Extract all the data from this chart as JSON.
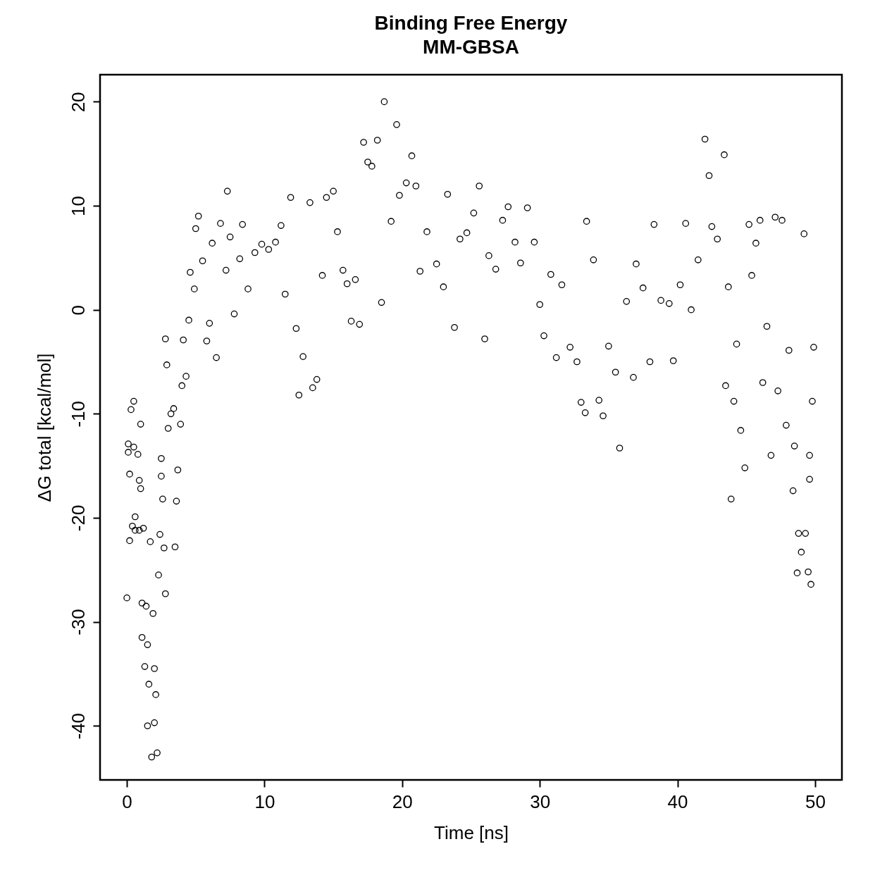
{
  "chart_data": {
    "type": "scatter",
    "title": "Binding Free Energy",
    "subtitle": "MM-GBSA",
    "xlabel": "Time [ns]",
    "ylabel": "ΔG total [kcal/mol]",
    "marker": "circle",
    "xlim": [
      -1.95,
      51.95
    ],
    "ylim": [
      -45.2,
      22.6
    ],
    "xticks": [
      0,
      10,
      20,
      30,
      40,
      50
    ],
    "yticks": [
      -40,
      -30,
      -20,
      -10,
      0,
      10,
      20
    ],
    "series": [
      {
        "color": "#000000",
        "x": [
          0.0,
          0.1,
          0.1,
          0.2,
          0.2,
          0.3,
          0.4,
          0.5,
          0.5,
          0.6,
          0.6,
          0.8,
          0.9,
          0.9,
          1.0,
          1.0,
          1.1,
          1.1,
          1.2,
          1.3,
          1.4,
          1.5,
          1.5,
          1.6,
          1.7,
          1.8,
          1.9,
          2.0,
          2.0,
          2.1,
          2.2,
          2.3,
          2.4,
          2.5,
          2.5,
          2.6,
          2.7,
          2.8,
          2.8,
          2.9,
          3.0,
          3.2,
          3.4,
          3.5,
          3.6,
          3.7,
          3.9,
          4.0,
          4.1,
          4.3,
          4.5,
          4.6,
          4.9,
          5.0,
          5.2,
          5.5,
          5.8,
          6.0,
          6.2,
          6.5,
          6.8,
          7.2,
          7.3,
          7.5,
          7.8,
          8.2,
          8.4,
          8.8,
          9.3,
          9.8,
          10.3,
          10.8,
          11.2,
          11.5,
          11.9,
          12.3,
          12.5,
          12.8,
          13.3,
          13.5,
          13.8,
          14.2,
          14.5,
          15.0,
          15.3,
          15.7,
          16.0,
          16.3,
          16.6,
          16.9,
          17.2,
          17.5,
          17.8,
          18.2,
          18.5,
          18.7,
          19.2,
          19.6,
          19.8,
          20.3,
          20.7,
          21.0,
          21.3,
          21.8,
          22.5,
          23.0,
          23.3,
          23.8,
          24.2,
          24.7,
          25.2,
          25.6,
          26.0,
          26.3,
          26.8,
          27.3,
          27.7,
          28.2,
          28.6,
          29.1,
          29.6,
          30.0,
          30.3,
          30.8,
          31.2,
          31.6,
          32.2,
          32.7,
          33.0,
          33.3,
          33.4,
          33.9,
          34.3,
          34.6,
          35.0,
          35.5,
          35.8,
          36.3,
          36.8,
          37.0,
          37.5,
          38.0,
          38.3,
          38.8,
          39.4,
          39.7,
          40.2,
          40.6,
          41.0,
          41.5,
          42.0,
          42.3,
          42.5,
          42.9,
          43.4,
          43.5,
          43.7,
          43.9,
          44.1,
          44.3,
          44.6,
          44.9,
          45.2,
          45.4,
          45.7,
          46.0,
          46.2,
          46.5,
          46.8,
          47.1,
          47.3,
          47.6,
          47.9,
          48.1,
          48.4,
          48.5,
          48.7,
          48.8,
          49.0,
          49.2,
          49.3,
          49.5,
          49.6,
          49.7,
          49.8,
          49.9,
          49.6
        ],
        "values": [
          -27.7,
          -13.7,
          -12.9,
          -15.8,
          -22.2,
          -9.6,
          -20.8,
          -8.8,
          -13.2,
          -21.2,
          -19.9,
          -13.9,
          -16.4,
          -21.2,
          -11.0,
          -17.2,
          -31.5,
          -28.2,
          -21.0,
          -34.3,
          -28.5,
          -32.2,
          -40.0,
          -36.0,
          -22.3,
          -43.0,
          -29.2,
          -39.7,
          -34.5,
          -37.0,
          -42.6,
          -25.5,
          -21.6,
          -16.0,
          -14.3,
          -18.2,
          -22.9,
          -27.3,
          -2.8,
          -5.3,
          -11.4,
          -10.0,
          -9.5,
          -22.8,
          -18.4,
          -15.4,
          -11.0,
          -7.3,
          -2.9,
          -6.4,
          -1.0,
          3.6,
          2.0,
          7.8,
          9.0,
          4.7,
          -3.0,
          -1.3,
          6.4,
          -4.6,
          8.3,
          3.8,
          11.4,
          7.0,
          -0.4,
          4.9,
          8.2,
          2.0,
          5.5,
          6.3,
          5.8,
          6.5,
          8.1,
          1.5,
          10.8,
          -1.8,
          -8.2,
          -4.5,
          10.3,
          -7.5,
          -6.7,
          3.3,
          10.8,
          11.4,
          7.5,
          3.8,
          2.5,
          -1.1,
          2.9,
          -1.4,
          16.1,
          14.2,
          13.8,
          16.3,
          0.7,
          20.0,
          8.5,
          17.8,
          11.0,
          12.2,
          14.8,
          11.9,
          3.7,
          7.5,
          4.4,
          2.2,
          11.1,
          -1.7,
          6.8,
          7.4,
          9.3,
          11.9,
          -2.8,
          5.2,
          3.9,
          8.6,
          9.9,
          6.5,
          4.5,
          9.8,
          6.5,
          0.5,
          -2.5,
          3.4,
          -4.6,
          2.4,
          -3.6,
          -5.0,
          -8.9,
          -9.9,
          8.5,
          4.8,
          -8.7,
          -10.2,
          -3.5,
          -6.0,
          -13.3,
          0.8,
          -6.5,
          4.4,
          2.1,
          -5.0,
          8.2,
          0.9,
          0.6,
          -4.9,
          2.4,
          8.3,
          0.0,
          4.8,
          16.4,
          12.9,
          8.0,
          6.8,
          14.9,
          -7.3,
          2.2,
          -18.2,
          -8.8,
          -3.3,
          -11.6,
          -15.2,
          8.2,
          3.3,
          6.4,
          8.6,
          -7.0,
          -1.6,
          -14.0,
          8.9,
          -7.8,
          8.6,
          -11.1,
          -3.9,
          -17.4,
          -13.1,
          -25.3,
          -21.5,
          -23.3,
          7.3,
          -21.5,
          -25.2,
          -14.0,
          -26.4,
          -8.8,
          -3.6,
          -16.3
        ]
      }
    ]
  }
}
